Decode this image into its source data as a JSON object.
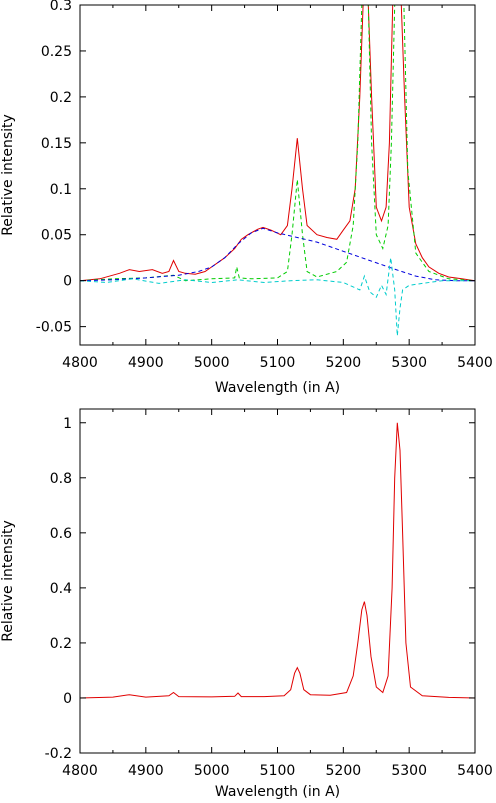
{
  "chart_data": [
    {
      "type": "line",
      "xlabel": "Wavelength (in A)",
      "ylabel": "Relative intensity",
      "xlim": [
        4800,
        5400
      ],
      "ylim": [
        -0.07,
        0.3
      ],
      "grid": false,
      "x_ticks": [
        4800,
        4900,
        5000,
        5100,
        5200,
        5300,
        5400
      ],
      "x_tick_labels": [
        "4800",
        "4900",
        "5000",
        "5100",
        "5200",
        "5300",
        "5400"
      ],
      "y_ticks": [
        -0.05,
        0,
        0.05,
        0.1,
        0.15,
        0.2,
        0.25,
        0.3
      ],
      "y_tick_labels": [
        "-0.05",
        "0",
        "0.05",
        "0.1",
        "0.15",
        "0.2",
        "0.25",
        "0.3"
      ],
      "series": [
        {
          "color": "#e00000",
          "dash": "solid",
          "x": [
            4800,
            4830,
            4860,
            4875,
            4890,
            4910,
            4925,
            4935,
            4942,
            4950,
            4960,
            4975,
            4990,
            5000,
            5010,
            5020,
            5035,
            5045,
            5055,
            5070,
            5078,
            5090,
            5105,
            5115,
            5122,
            5130,
            5138,
            5145,
            5160,
            5175,
            5190,
            5200,
            5210,
            5218,
            5225,
            5230,
            5233,
            5238,
            5243,
            5250,
            5258,
            5265,
            5270,
            5275,
            5280,
            5283,
            5288,
            5293,
            5300,
            5310,
            5320,
            5330,
            5345,
            5360,
            5380,
            5400
          ],
          "y": [
            0.0,
            0.002,
            0.008,
            0.012,
            0.01,
            0.012,
            0.008,
            0.01,
            0.022,
            0.01,
            0.008,
            0.007,
            0.01,
            0.015,
            0.02,
            0.025,
            0.035,
            0.045,
            0.05,
            0.056,
            0.058,
            0.055,
            0.05,
            0.06,
            0.1,
            0.155,
            0.1,
            0.06,
            0.05,
            0.047,
            0.045,
            0.055,
            0.065,
            0.1,
            0.2,
            0.3,
            0.3,
            0.3,
            0.2,
            0.08,
            0.065,
            0.08,
            0.15,
            0.3,
            0.3,
            0.3,
            0.3,
            0.2,
            0.08,
            0.04,
            0.025,
            0.015,
            0.008,
            0.004,
            0.002,
            0.0
          ]
        },
        {
          "color": "#00cc00",
          "dash": "dashed",
          "x": [
            4800,
            4850,
            4900,
            4942,
            4960,
            5000,
            5035,
            5038,
            5042,
            5060,
            5100,
            5115,
            5122,
            5130,
            5138,
            5145,
            5160,
            5190,
            5205,
            5215,
            5222,
            5228,
            5231,
            5238,
            5243,
            5250,
            5260,
            5268,
            5273,
            5278,
            5285,
            5292,
            5298,
            5310,
            5330,
            5360,
            5400
          ],
          "y": [
            0.0,
            0.002,
            0.003,
            0.006,
            0.0,
            0.002,
            0.003,
            0.015,
            0.003,
            0.002,
            0.003,
            0.01,
            0.05,
            0.11,
            0.05,
            0.01,
            0.004,
            0.01,
            0.02,
            0.06,
            0.15,
            0.3,
            0.3,
            0.3,
            0.15,
            0.05,
            0.035,
            0.06,
            0.15,
            0.3,
            0.3,
            0.3,
            0.12,
            0.03,
            0.01,
            0.002,
            0.0
          ]
        },
        {
          "color": "#0000dd",
          "dash": "dashed",
          "x": [
            4800,
            4850,
            4900,
            4950,
            4980,
            5000,
            5020,
            5040,
            5060,
            5078,
            5100,
            5130,
            5160,
            5200,
            5240,
            5280,
            5310,
            5340,
            5370,
            5400
          ],
          "y": [
            0.0,
            0.001,
            0.003,
            0.006,
            0.01,
            0.015,
            0.025,
            0.04,
            0.052,
            0.057,
            0.052,
            0.047,
            0.042,
            0.032,
            0.022,
            0.012,
            0.005,
            0.001,
            0.0,
            0.0
          ]
        },
        {
          "color": "#00cccc",
          "dash": "dashed",
          "x": [
            4800,
            4840,
            4880,
            4920,
            4960,
            5000,
            5040,
            5080,
            5120,
            5160,
            5200,
            5225,
            5232,
            5240,
            5250,
            5258,
            5265,
            5272,
            5278,
            5282,
            5286,
            5290,
            5300,
            5320,
            5350,
            5400
          ],
          "y": [
            0.0,
            -0.002,
            0.002,
            -0.003,
            0.001,
            -0.002,
            0.001,
            -0.002,
            0.0,
            0.001,
            -0.002,
            -0.01,
            0.005,
            -0.012,
            -0.018,
            -0.005,
            -0.015,
            0.025,
            -0.01,
            -0.06,
            -0.03,
            -0.01,
            -0.005,
            -0.003,
            0.0,
            0.0
          ]
        }
      ]
    },
    {
      "type": "line",
      "xlabel": "Wavelength (in A)",
      "ylabel": "Relative intensity",
      "xlim": [
        4800,
        5400
      ],
      "ylim": [
        -0.2,
        1.05
      ],
      "grid": false,
      "x_ticks": [
        4800,
        4900,
        5000,
        5100,
        5200,
        5300,
        5400
      ],
      "x_tick_labels": [
        "4800",
        "4900",
        "5000",
        "5100",
        "5200",
        "5300",
        "5400"
      ],
      "y_ticks": [
        -0.2,
        0,
        0.2,
        0.4,
        0.6,
        0.8,
        1
      ],
      "y_tick_labels": [
        "-0.2",
        "0",
        "0.2",
        "0.4",
        "0.6",
        "0.8",
        "1"
      ],
      "series": [
        {
          "color": "#e00000",
          "dash": "solid",
          "x": [
            4800,
            4850,
            4875,
            4900,
            4935,
            4942,
            4950,
            5000,
            5035,
            5040,
            5045,
            5080,
            5110,
            5120,
            5126,
            5130,
            5134,
            5140,
            5150,
            5180,
            5205,
            5215,
            5222,
            5228,
            5232,
            5236,
            5242,
            5250,
            5260,
            5268,
            5274,
            5278,
            5282,
            5286,
            5290,
            5295,
            5302,
            5320,
            5360,
            5400
          ],
          "y": [
            0.0,
            0.003,
            0.012,
            0.003,
            0.008,
            0.02,
            0.005,
            0.004,
            0.006,
            0.018,
            0.005,
            0.005,
            0.008,
            0.03,
            0.09,
            0.11,
            0.09,
            0.03,
            0.012,
            0.01,
            0.02,
            0.08,
            0.2,
            0.32,
            0.35,
            0.3,
            0.15,
            0.04,
            0.02,
            0.08,
            0.4,
            0.8,
            1.0,
            0.9,
            0.6,
            0.2,
            0.04,
            0.008,
            0.002,
            0.0
          ]
        }
      ]
    }
  ]
}
